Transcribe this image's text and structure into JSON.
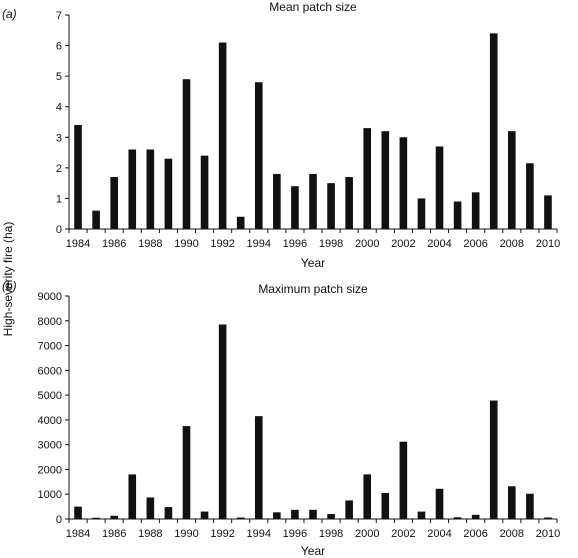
{
  "shared": {
    "ylabel": "High-severity fire (ha)"
  },
  "chart_data": [
    {
      "type": "bar",
      "panel_label": "(a)",
      "title": "Mean patch size",
      "xlabel": "Year",
      "ylabel": "High-severity fire (ha)",
      "ylim": [
        0,
        7
      ],
      "yticks": [
        0,
        1,
        2,
        3,
        4,
        5,
        6,
        7
      ],
      "xtick_labels": [
        "1984",
        "1986",
        "1988",
        "1990",
        "1992",
        "1994",
        "1996",
        "1998",
        "2000",
        "2002",
        "2004",
        "2006",
        "2008",
        "2010"
      ],
      "categories": [
        1984,
        1985,
        1986,
        1987,
        1988,
        1989,
        1990,
        1991,
        1992,
        1993,
        1994,
        1995,
        1996,
        1997,
        1998,
        1999,
        2000,
        2001,
        2002,
        2003,
        2004,
        2005,
        2006,
        2007,
        2008,
        2009,
        2010
      ],
      "values": [
        3.4,
        0.6,
        1.7,
        2.6,
        2.6,
        2.3,
        4.9,
        2.4,
        6.1,
        0.4,
        4.8,
        1.8,
        1.4,
        1.8,
        1.5,
        1.7,
        3.3,
        3.2,
        3.0,
        1.0,
        2.7,
        0.9,
        1.2,
        6.4,
        3.2,
        2.15,
        1.1
      ],
      "bar_color": "#111111",
      "grid": false
    },
    {
      "type": "bar",
      "panel_label": "(b)",
      "title": "Maximum patch size",
      "xlabel": "Year",
      "ylabel": "High-severity fire (ha)",
      "ylim": [
        0,
        9000
      ],
      "yticks": [
        0,
        1000,
        2000,
        3000,
        4000,
        5000,
        6000,
        7000,
        8000,
        9000
      ],
      "xtick_labels": [
        "1984",
        "1986",
        "1988",
        "1990",
        "1992",
        "1994",
        "1996",
        "1998",
        "2000",
        "2002",
        "2004",
        "2006",
        "2008",
        "2010"
      ],
      "categories": [
        1984,
        1985,
        1986,
        1987,
        1988,
        1989,
        1990,
        1991,
        1992,
        1993,
        1994,
        1995,
        1996,
        1997,
        1998,
        1999,
        2000,
        2001,
        2002,
        2003,
        2004,
        2005,
        2006,
        2007,
        2008,
        2009,
        2010
      ],
      "values": [
        500,
        50,
        130,
        1800,
        870,
        480,
        3750,
        300,
        7850,
        60,
        4150,
        270,
        370,
        370,
        200,
        750,
        1800,
        1050,
        3120,
        300,
        1220,
        70,
        170,
        4780,
        1320,
        1020,
        60
      ],
      "bar_color": "#111111",
      "grid": false
    }
  ]
}
